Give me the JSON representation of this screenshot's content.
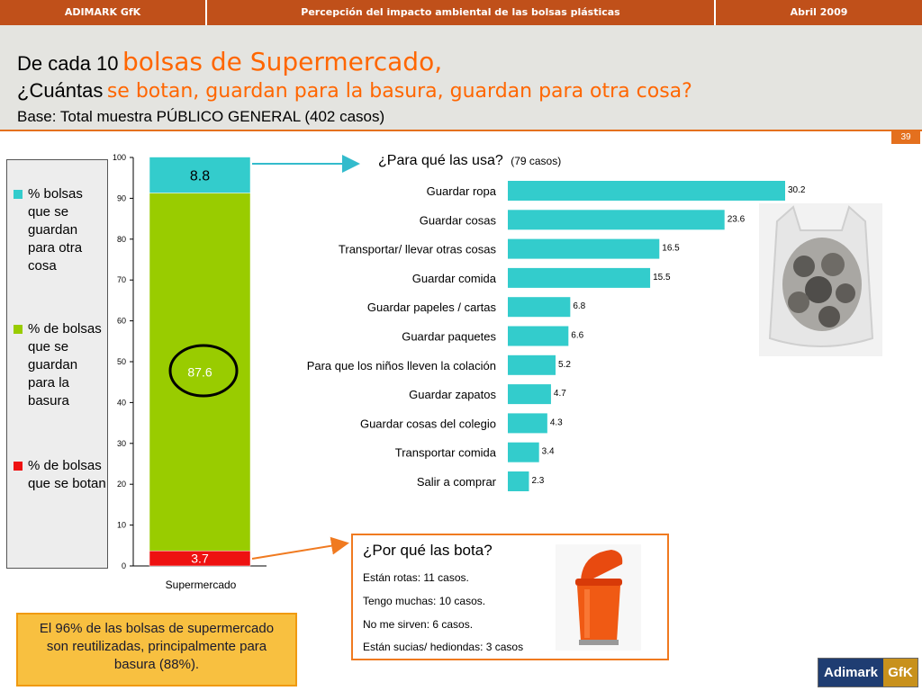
{
  "header": {
    "left": "ADIMARK GfK",
    "center": "Percepción del impacto ambiental de las bolsas plásticas",
    "right": "Abril 2009"
  },
  "title": {
    "line1_prefix": "De cada 10",
    "line1_highlight": "bolsas de Supermercado,",
    "line2_prefix": "¿Cuántas",
    "line2_highlight": "se botan, guardan para la basura, guardan para otra cosa?",
    "base": "Base: Total muestra PÚBLICO GENERAL (402 casos)"
  },
  "page_number": "39",
  "colors": {
    "accent": "#ff6600",
    "otra_cosa": "#33cccc",
    "basura": "#99cc00",
    "botan": "#ee1111",
    "header_bar": "#c0501a"
  },
  "legend": [
    {
      "label": "% bolsas que se guardan para otra cosa",
      "color": "#33cccc"
    },
    {
      "label": "% de bolsas que se guardan para la basura",
      "color": "#99cc00"
    },
    {
      "label": "% de bolsas que se botan",
      "color": "#ee1111"
    }
  ],
  "chart_data": [
    {
      "type": "bar",
      "stacked": true,
      "categories": [
        "Supermercado"
      ],
      "series": [
        {
          "name": "% de bolsas que se botan",
          "values": [
            3.7
          ],
          "color": "#ee1111"
        },
        {
          "name": "% de bolsas que se guardan para la basura",
          "values": [
            87.6
          ],
          "color": "#99cc00"
        },
        {
          "name": "% bolsas que se guardan para otra cosa",
          "values": [
            8.8
          ],
          "color": "#33cccc"
        }
      ],
      "ylim": [
        0,
        100
      ],
      "yticks": [
        0,
        10,
        20,
        30,
        40,
        50,
        60,
        70,
        80,
        90,
        100
      ],
      "highlighted_value": 87.6
    },
    {
      "type": "bar",
      "orientation": "horizontal",
      "title": "¿Para qué las usa?",
      "subtitle": "(79 casos)",
      "categories": [
        "Guardar ropa",
        "Guardar cosas",
        "Transportar/ llevar otras cosas",
        "Guardar comida",
        "Guardar papeles / cartas",
        "Guardar paquetes",
        "Para que los niños lleven la colación",
        "Guardar zapatos",
        "Guardar cosas del colegio",
        "Transportar comida",
        "Salir a comprar"
      ],
      "values": [
        30.2,
        23.6,
        16.5,
        15.5,
        6.8,
        6.6,
        5.2,
        4.7,
        4.3,
        3.4,
        2.3
      ],
      "color": "#33cccc"
    }
  ],
  "why_thrown": {
    "title": "¿Por qué las bota?",
    "lines": [
      "Están rotas: 11 casos.",
      "Tengo muchas: 10 casos.",
      "No me sirven: 6 casos.",
      "Están sucias/ hediondas: 3 casos"
    ]
  },
  "note": "El 96% de las bolsas de supermercado son reutilizadas, principalmente para basura (88%).",
  "logo": {
    "part1": "Adimark",
    "part2": "GfK"
  }
}
